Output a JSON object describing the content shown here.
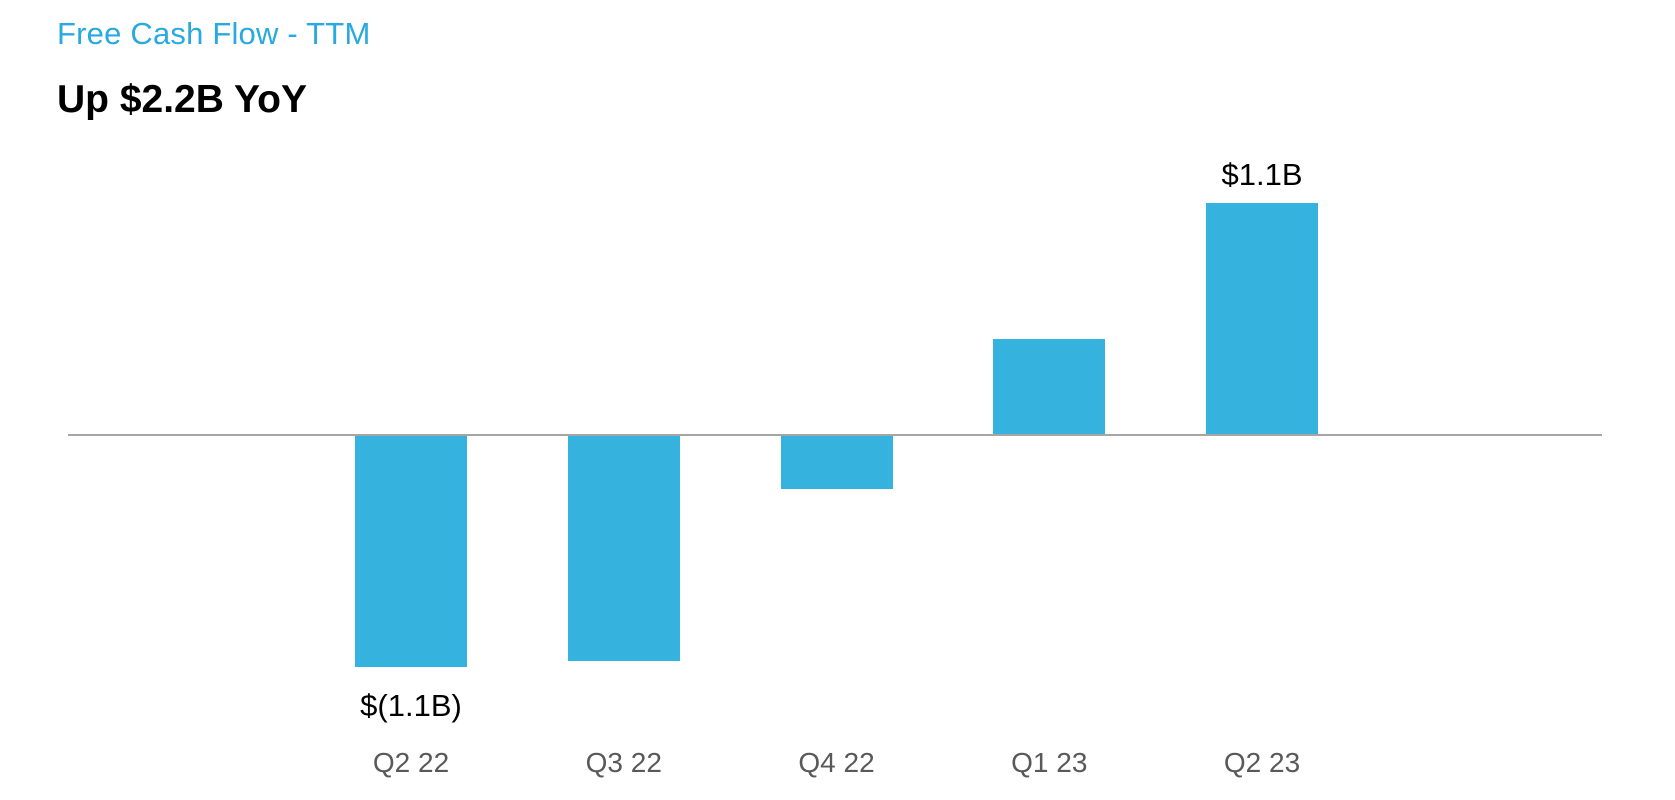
{
  "header": {
    "title": "Free Cash Flow - TTM",
    "subtitle": "Up $2.2B YoY"
  },
  "colors": {
    "title": "#29A9E1",
    "bar": "#35B2DE",
    "axis": "#A6A6A6",
    "category_label": "#595959",
    "data_label": "#000000"
  },
  "chart_data": {
    "type": "bar",
    "title": "Free Cash Flow - TTM",
    "subtitle": "Up $2.2B YoY",
    "categories": [
      "Q2 22",
      "Q3 22",
      "Q4 22",
      "Q1 23",
      "Q2 23"
    ],
    "values": [
      -1.1,
      -1.07,
      -0.25,
      0.45,
      1.1
    ],
    "value_unit": "$B",
    "data_labels": [
      "$(1.1B)",
      "",
      "",
      "",
      "$1.1B"
    ],
    "ylim": [
      -1.3,
      1.3
    ],
    "grid": false,
    "legend": false,
    "y_axis_visible": false,
    "baseline": 0
  }
}
